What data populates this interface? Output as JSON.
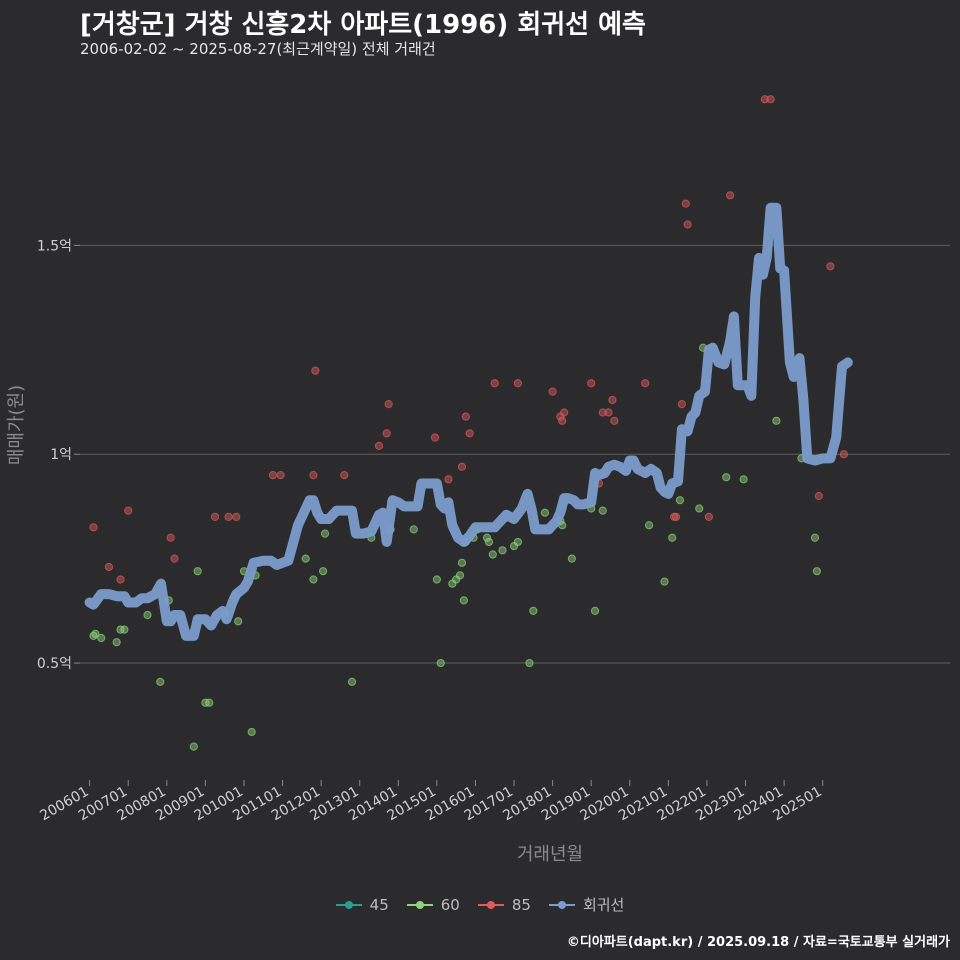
{
  "header": {
    "title": "[거창군] 거창 신흥2차 아파트(1996) 회귀선 예측",
    "subtitle": "2006-02-02 ~ 2025-08-27(최근계약일) 전체 거래건"
  },
  "caption": "©디아파트(dapt.kr) / 2025.09.18 / 자료=국토교통부 실거래가",
  "legend": {
    "items": [
      {
        "label": "45",
        "color": "#2a9d8f"
      },
      {
        "label": "60",
        "color": "#8fd47a"
      },
      {
        "label": "85",
        "color": "#e05a5a"
      },
      {
        "label": "회귀선",
        "color": "#7b9ccc"
      }
    ]
  },
  "chart_data": {
    "type": "scatter",
    "xlabel": "거래년월",
    "ylabel": "매매가(원)",
    "x_tick_labels": [
      "200601",
      "200701",
      "200801",
      "200901",
      "201001",
      "201101",
      "201201",
      "201301",
      "201401",
      "201501",
      "201601",
      "201701",
      "201801",
      "201901",
      "202001",
      "202101",
      "202201",
      "202301",
      "202401",
      "202501"
    ],
    "x_tick_years": [
      2006,
      2007,
      2008,
      2009,
      2010,
      2011,
      2012,
      2013,
      2014,
      2015,
      2016,
      2017,
      2018,
      2019,
      2020,
      2021,
      2022,
      2023,
      2024,
      2025
    ],
    "xlim": [
      2005.75,
      2028.3
    ],
    "y_ticks": [
      0.5,
      1.0,
      1.5
    ],
    "y_tick_labels": [
      "0.5억",
      "1억",
      "1.5억"
    ],
    "ylim": [
      0.22,
      1.92
    ],
    "grid": true,
    "legend_position": "bottom",
    "series": [
      {
        "name": "45",
        "color": "#2a9d8f",
        "points": []
      },
      {
        "name": "60",
        "color": "#8fd47a",
        "points": [
          [
            2006.1,
            0.565
          ],
          [
            2006.15,
            0.57
          ],
          [
            2006.3,
            0.56
          ],
          [
            2006.7,
            0.55
          ],
          [
            2006.8,
            0.58
          ],
          [
            2006.9,
            0.58
          ],
          [
            2007.5,
            0.615
          ],
          [
            2007.83,
            0.455
          ],
          [
            2008.05,
            0.65
          ],
          [
            2008.7,
            0.3
          ],
          [
            2008.8,
            0.72
          ],
          [
            2009.0,
            0.405
          ],
          [
            2009.1,
            0.405
          ],
          [
            2009.5,
            0.62
          ],
          [
            2009.75,
            0.66
          ],
          [
            2009.85,
            0.6
          ],
          [
            2010.0,
            0.72
          ],
          [
            2010.2,
            0.335
          ],
          [
            2010.3,
            0.71
          ],
          [
            2011.6,
            0.75
          ],
          [
            2011.8,
            0.7
          ],
          [
            2012.05,
            0.72
          ],
          [
            2012.1,
            0.81
          ],
          [
            2012.8,
            0.455
          ],
          [
            2013.3,
            0.8
          ],
          [
            2013.8,
            0.82
          ],
          [
            2014.4,
            0.82
          ],
          [
            2015.0,
            0.7
          ],
          [
            2015.1,
            0.5
          ],
          [
            2015.4,
            0.69
          ],
          [
            2015.5,
            0.7
          ],
          [
            2015.6,
            0.71
          ],
          [
            2015.65,
            0.74
          ],
          [
            2015.7,
            0.65
          ],
          [
            2015.75,
            0.79
          ],
          [
            2015.95,
            0.8
          ],
          [
            2016.05,
            0.82
          ],
          [
            2016.3,
            0.8
          ],
          [
            2016.35,
            0.79
          ],
          [
            2016.45,
            0.76
          ],
          [
            2016.7,
            0.77
          ],
          [
            2017.0,
            0.78
          ],
          [
            2017.1,
            0.79
          ],
          [
            2017.4,
            0.5
          ],
          [
            2017.5,
            0.625
          ],
          [
            2017.8,
            0.86
          ],
          [
            2018.2,
            0.84
          ],
          [
            2018.25,
            0.83
          ],
          [
            2018.5,
            0.75
          ],
          [
            2019.0,
            0.87
          ],
          [
            2019.1,
            0.625
          ],
          [
            2019.3,
            0.865
          ],
          [
            2020.5,
            0.83
          ],
          [
            2020.9,
            0.695
          ],
          [
            2021.1,
            0.8
          ],
          [
            2021.3,
            0.89
          ],
          [
            2021.8,
            0.87
          ],
          [
            2021.9,
            1.255
          ],
          [
            2022.5,
            0.945
          ],
          [
            2022.95,
            0.94
          ],
          [
            2023.8,
            1.08
          ],
          [
            2024.45,
            0.99
          ],
          [
            2024.8,
            0.8
          ],
          [
            2024.85,
            0.72
          ]
        ]
      },
      {
        "name": "85",
        "color": "#e05a5a",
        "points": [
          [
            2006.1,
            0.825
          ],
          [
            2006.5,
            0.73
          ],
          [
            2006.8,
            0.7
          ],
          [
            2007.0,
            0.865
          ],
          [
            2008.1,
            0.8
          ],
          [
            2008.2,
            0.75
          ],
          [
            2009.25,
            0.85
          ],
          [
            2009.6,
            0.85
          ],
          [
            2009.8,
            0.85
          ],
          [
            2010.75,
            0.95
          ],
          [
            2010.95,
            0.95
          ],
          [
            2011.8,
            0.95
          ],
          [
            2011.85,
            1.2
          ],
          [
            2012.6,
            0.95
          ],
          [
            2013.5,
            1.02
          ],
          [
            2013.7,
            1.05
          ],
          [
            2013.75,
            1.12
          ],
          [
            2014.95,
            1.04
          ],
          [
            2015.3,
            0.94
          ],
          [
            2015.65,
            0.97
          ],
          [
            2015.75,
            1.09
          ],
          [
            2015.85,
            1.05
          ],
          [
            2016.5,
            1.17
          ],
          [
            2017.1,
            1.17
          ],
          [
            2018.0,
            1.15
          ],
          [
            2018.2,
            1.09
          ],
          [
            2018.25,
            1.08
          ],
          [
            2018.3,
            1.1
          ],
          [
            2019.0,
            1.17
          ],
          [
            2019.2,
            0.93
          ],
          [
            2019.3,
            1.1
          ],
          [
            2019.45,
            1.1
          ],
          [
            2019.55,
            1.13
          ],
          [
            2019.6,
            1.08
          ],
          [
            2020.4,
            1.17
          ],
          [
            2021.15,
            0.85
          ],
          [
            2021.2,
            0.85
          ],
          [
            2021.35,
            1.12
          ],
          [
            2021.45,
            1.6
          ],
          [
            2021.5,
            1.55
          ],
          [
            2022.05,
            0.85
          ],
          [
            2022.6,
            1.62
          ],
          [
            2023.5,
            1.85
          ],
          [
            2023.65,
            1.85
          ],
          [
            2024.9,
            0.9
          ],
          [
            2025.2,
            1.45
          ],
          [
            2025.55,
            1.0
          ]
        ]
      }
    ],
    "regression": {
      "name": "회귀선",
      "color": "#7b9ccc",
      "points": [
        [
          2006.0,
          0.645
        ],
        [
          2006.1,
          0.64
        ],
        [
          2006.3,
          0.665
        ],
        [
          2006.5,
          0.665
        ],
        [
          2006.7,
          0.66
        ],
        [
          2006.9,
          0.66
        ],
        [
          2007.0,
          0.645
        ],
        [
          2007.2,
          0.645
        ],
        [
          2007.35,
          0.655
        ],
        [
          2007.5,
          0.655
        ],
        [
          2007.7,
          0.665
        ],
        [
          2007.85,
          0.69
        ],
        [
          2008.0,
          0.6
        ],
        [
          2008.1,
          0.6
        ],
        [
          2008.2,
          0.615
        ],
        [
          2008.35,
          0.615
        ],
        [
          2008.5,
          0.565
        ],
        [
          2008.7,
          0.565
        ],
        [
          2008.8,
          0.605
        ],
        [
          2009.0,
          0.605
        ],
        [
          2009.15,
          0.59
        ],
        [
          2009.3,
          0.615
        ],
        [
          2009.45,
          0.625
        ],
        [
          2009.55,
          0.605
        ],
        [
          2009.7,
          0.645
        ],
        [
          2009.8,
          0.665
        ],
        [
          2010.0,
          0.68
        ],
        [
          2010.1,
          0.695
        ],
        [
          2010.25,
          0.74
        ],
        [
          2010.5,
          0.745
        ],
        [
          2010.7,
          0.745
        ],
        [
          2010.85,
          0.735
        ],
        [
          2011.0,
          0.74
        ],
        [
          2011.15,
          0.745
        ],
        [
          2011.4,
          0.83
        ],
        [
          2011.55,
          0.86
        ],
        [
          2011.7,
          0.89
        ],
        [
          2011.8,
          0.89
        ],
        [
          2011.9,
          0.86
        ],
        [
          2012.0,
          0.845
        ],
        [
          2012.2,
          0.845
        ],
        [
          2012.4,
          0.865
        ],
        [
          2012.6,
          0.865
        ],
        [
          2012.8,
          0.865
        ],
        [
          2012.9,
          0.81
        ],
        [
          2013.1,
          0.81
        ],
        [
          2013.3,
          0.815
        ],
        [
          2013.5,
          0.855
        ],
        [
          2013.6,
          0.86
        ],
        [
          2013.7,
          0.79
        ],
        [
          2013.85,
          0.89
        ],
        [
          2014.0,
          0.885
        ],
        [
          2014.15,
          0.875
        ],
        [
          2014.35,
          0.875
        ],
        [
          2014.5,
          0.875
        ],
        [
          2014.6,
          0.93
        ],
        [
          2014.8,
          0.93
        ],
        [
          2015.0,
          0.93
        ],
        [
          2015.1,
          0.88
        ],
        [
          2015.2,
          0.87
        ],
        [
          2015.3,
          0.885
        ],
        [
          2015.4,
          0.83
        ],
        [
          2015.55,
          0.8
        ],
        [
          2015.7,
          0.79
        ],
        [
          2015.85,
          0.805
        ],
        [
          2016.0,
          0.825
        ],
        [
          2016.2,
          0.825
        ],
        [
          2016.5,
          0.825
        ],
        [
          2016.6,
          0.835
        ],
        [
          2016.8,
          0.855
        ],
        [
          2017.0,
          0.845
        ],
        [
          2017.2,
          0.87
        ],
        [
          2017.35,
          0.905
        ],
        [
          2017.45,
          0.87
        ],
        [
          2017.55,
          0.82
        ],
        [
          2017.7,
          0.82
        ],
        [
          2017.9,
          0.82
        ],
        [
          2018.0,
          0.83
        ],
        [
          2018.1,
          0.84
        ],
        [
          2018.2,
          0.86
        ],
        [
          2018.3,
          0.895
        ],
        [
          2018.4,
          0.895
        ],
        [
          2018.55,
          0.89
        ],
        [
          2018.65,
          0.88
        ],
        [
          2018.8,
          0.88
        ],
        [
          2019.0,
          0.885
        ],
        [
          2019.1,
          0.955
        ],
        [
          2019.2,
          0.95
        ],
        [
          2019.35,
          0.955
        ],
        [
          2019.45,
          0.97
        ],
        [
          2019.6,
          0.975
        ],
        [
          2019.75,
          0.97
        ],
        [
          2019.9,
          0.96
        ],
        [
          2020.0,
          0.985
        ],
        [
          2020.1,
          0.985
        ],
        [
          2020.2,
          0.965
        ],
        [
          2020.3,
          0.96
        ],
        [
          2020.4,
          0.955
        ],
        [
          2020.55,
          0.965
        ],
        [
          2020.7,
          0.955
        ],
        [
          2020.8,
          0.92
        ],
        [
          2020.9,
          0.91
        ],
        [
          2021.0,
          0.905
        ],
        [
          2021.1,
          0.93
        ],
        [
          2021.25,
          0.935
        ],
        [
          2021.35,
          1.06
        ],
        [
          2021.5,
          1.055
        ],
        [
          2021.6,
          1.09
        ],
        [
          2021.7,
          1.1
        ],
        [
          2021.8,
          1.14
        ],
        [
          2021.95,
          1.15
        ],
        [
          2022.05,
          1.25
        ],
        [
          2022.15,
          1.255
        ],
        [
          2022.3,
          1.22
        ],
        [
          2022.45,
          1.215
        ],
        [
          2022.6,
          1.27
        ],
        [
          2022.7,
          1.33
        ],
        [
          2022.8,
          1.165
        ],
        [
          2022.95,
          1.165
        ],
        [
          2023.05,
          1.165
        ],
        [
          2023.15,
          1.14
        ],
        [
          2023.25,
          1.375
        ],
        [
          2023.35,
          1.47
        ],
        [
          2023.45,
          1.43
        ],
        [
          2023.55,
          1.47
        ],
        [
          2023.65,
          1.59
        ],
        [
          2023.8,
          1.59
        ],
        [
          2023.9,
          1.445
        ],
        [
          2024.0,
          1.44
        ],
        [
          2024.15,
          1.22
        ],
        [
          2024.25,
          1.185
        ],
        [
          2024.4,
          1.23
        ],
        [
          2024.5,
          1.13
        ],
        [
          2024.6,
          0.99
        ],
        [
          2024.8,
          0.985
        ],
        [
          2025.0,
          0.99
        ],
        [
          2025.2,
          0.99
        ],
        [
          2025.35,
          1.04
        ],
        [
          2025.5,
          1.21
        ],
        [
          2025.65,
          1.22
        ]
      ]
    }
  }
}
